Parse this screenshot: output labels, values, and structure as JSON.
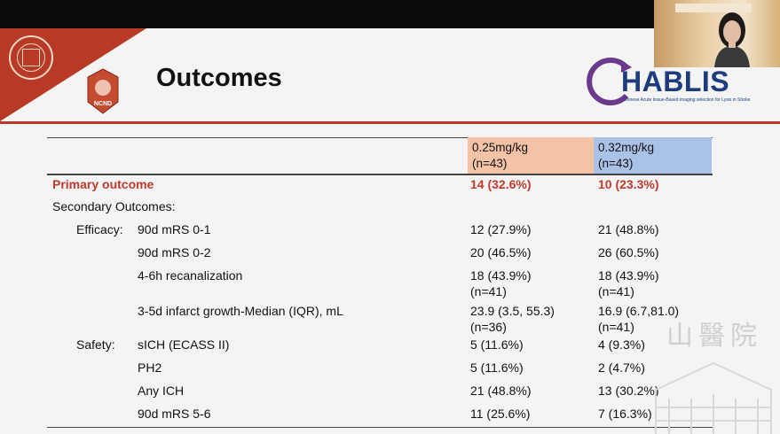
{
  "slide": {
    "title": "Outcomes",
    "brand": {
      "logo_text": "HABLIS",
      "logo_subtitle": "Chinese Acute tissue-Based imaging selection for Lysis in Stroke",
      "ncnd_label": "NCND"
    },
    "table": {
      "headers": [
        {
          "line1": "0.25mg/kg",
          "line2": "(n=43)",
          "color": "#f4c3a5"
        },
        {
          "line1": "0.32mg/kg",
          "line2": "(n=43)",
          "color": "#aac2e8"
        }
      ],
      "primary": {
        "label": "Primary outcome",
        "v1": "14 (32.6%)",
        "v2": "10 (23.3%)"
      },
      "secondary_label": "Secondary Outcomes:",
      "efficacy_label": "Efficacy:",
      "safety_label": "Safety:",
      "rows": [
        {
          "label": "90d mRS 0-1",
          "v1": "12 (27.9%)",
          "v1b": "",
          "v2": "21 (48.8%)",
          "v2b": ""
        },
        {
          "label": "90d mRS 0-2",
          "v1": "20 (46.5%)",
          "v1b": "",
          "v2": "26 (60.5%)",
          "v2b": ""
        },
        {
          "label": "4-6h recanalization",
          "v1": "18 (43.9%)",
          "v1b": "(n=41)",
          "v2": "18 (43.9%)",
          "v2b": "(n=41)"
        },
        {
          "label": "3-5d infarct growth-Median (IQR), mL",
          "v1": "23.9 (3.5, 55.3)",
          "v1b": "(n=36)",
          "v2": "16.9 (6.7,81.0)",
          "v2b": "(n=41)"
        },
        {
          "label": "sICH (ECASS II)",
          "v1": "5 (11.6%)",
          "v1b": "",
          "v2": "4 (9.3%)",
          "v2b": ""
        },
        {
          "label": "PH2",
          "v1": "5 (11.6%)",
          "v1b": "",
          "v2": "2 (4.7%)",
          "v2b": ""
        },
        {
          "label": "Any ICH",
          "v1": "21 (48.8%)",
          "v1b": "",
          "v2": "13 (30.2%)",
          "v2b": ""
        },
        {
          "label": "90d mRS 5-6",
          "v1": "11 (25.6%)",
          "v1b": "",
          "v2": "7 (16.3%)",
          "v2b": ""
        }
      ]
    },
    "watermark": "山醫院",
    "colors": {
      "accent_red": "#b83a26",
      "primary_text": "#c0392b",
      "logo_blue": "#1c3c7e",
      "logo_purple": "#6b3a8c"
    }
  },
  "video_tile": {
    "banner": "",
    "person": "presenter"
  }
}
